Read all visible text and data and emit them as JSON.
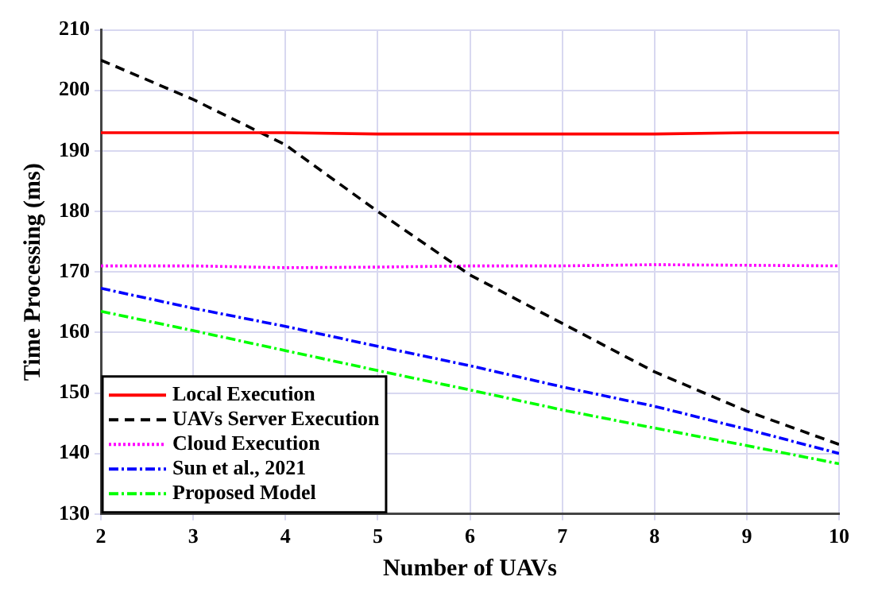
{
  "chart_data": {
    "type": "line",
    "xlabel": "Number of UAVs",
    "ylabel": "Time Processing (ms)",
    "x": [
      2,
      3,
      4,
      5,
      6,
      7,
      8,
      9,
      10
    ],
    "xlim": [
      2,
      10
    ],
    "xticks": [
      2,
      3,
      4,
      5,
      6,
      7,
      8,
      9,
      10
    ],
    "ylim": [
      130,
      210
    ],
    "yticks": [
      130,
      140,
      150,
      160,
      170,
      180,
      190,
      200,
      210
    ],
    "grid": true,
    "legend": "bottom left",
    "marker": "none",
    "series": [
      {
        "name": "Local Execution",
        "color": "#ff0000",
        "line_style": "solid",
        "values": [
          193,
          193,
          193,
          192.8,
          192.8,
          192.8,
          192.8,
          193,
          193
        ]
      },
      {
        "name": "UAVs Server Execution",
        "color": "#000000",
        "line_style": "dashed",
        "values": [
          205,
          198.5,
          191,
          180,
          169.5,
          161.5,
          153.5,
          147,
          141.5
        ]
      },
      {
        "name": "Cloud Execution",
        "color": "#ff00ff",
        "line_style": "dotted",
        "values": [
          171,
          171,
          170.7,
          170.8,
          171,
          171,
          171.2,
          171.1,
          171
        ]
      },
      {
        "name": "Sun et al., 2021",
        "color": "#0000ff",
        "line_style": "dashdot",
        "values": [
          167.3,
          164,
          161,
          157.7,
          154.5,
          151,
          147.8,
          144,
          140
        ]
      },
      {
        "name": "Proposed Model",
        "color": "#00ff00",
        "line_style": "dashdot",
        "values": [
          163.5,
          160.3,
          157,
          153.7,
          150.5,
          147.2,
          144.2,
          141.3,
          138.3
        ]
      }
    ]
  }
}
